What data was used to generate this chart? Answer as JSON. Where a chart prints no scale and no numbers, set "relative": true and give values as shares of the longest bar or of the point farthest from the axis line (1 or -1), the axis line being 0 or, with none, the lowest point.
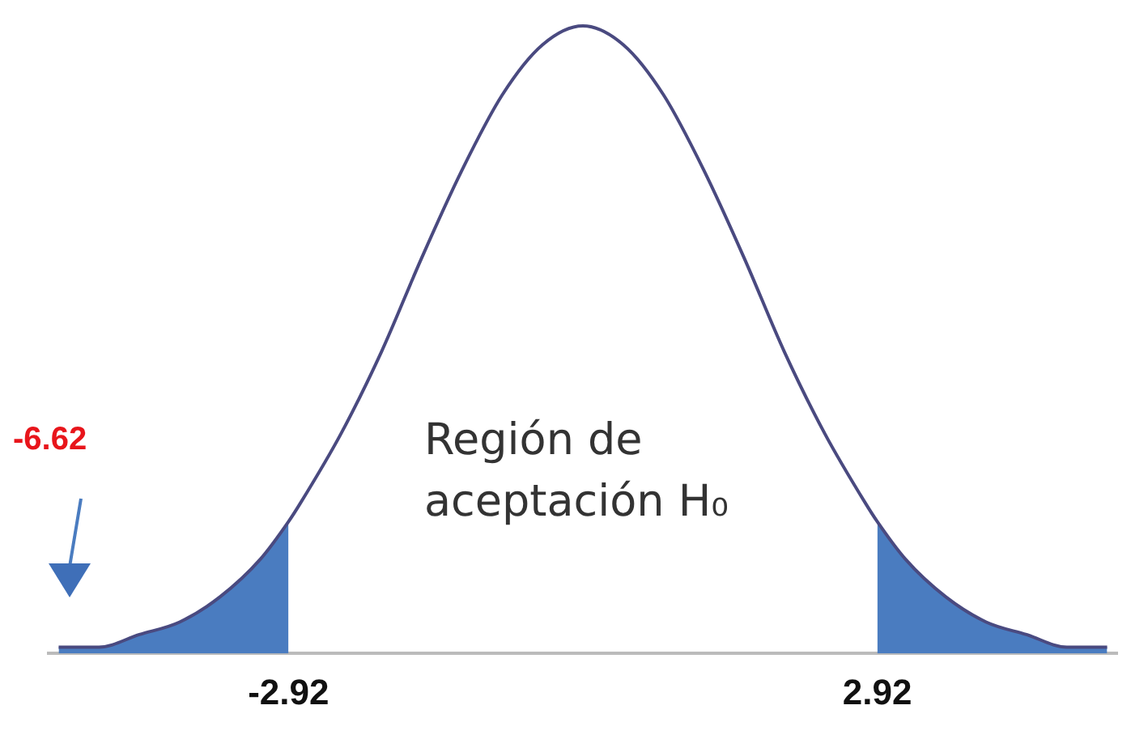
{
  "chart_data": {
    "type": "line",
    "relative": true,
    "xlim": [
      -5.3,
      5.3
    ],
    "xticks": [
      {
        "value": -2.92,
        "label": "-2.92"
      },
      {
        "value": 2.92,
        "label": "2.92"
      }
    ],
    "series": [
      {
        "color": "#4a4a80",
        "x": [
          -5.2,
          -4.8,
          -4.4,
          -4.0,
          -3.6,
          -3.2,
          -2.92,
          -2.8,
          -2.4,
          -2.0,
          -1.6,
          -1.2,
          -0.8,
          -0.4,
          0,
          0.4,
          0.8,
          1.2,
          1.6,
          2.0,
          2.4,
          2.8,
          2.92,
          3.2,
          3.6,
          4.0,
          4.4,
          4.8,
          5.2
        ],
        "values": [
          0.01,
          0.01,
          0.03,
          0.05,
          0.09,
          0.15,
          0.21,
          0.24,
          0.35,
          0.48,
          0.63,
          0.77,
          0.89,
          0.97,
          1,
          0.97,
          0.89,
          0.77,
          0.63,
          0.48,
          0.35,
          0.24,
          0.21,
          0.15,
          0.09,
          0.05,
          0.03,
          0.01,
          0.01
        ]
      },
      {
        "type": "area",
        "color": "#4a7cc0",
        "x": [
          -5.2,
          -4.8,
          -4.4,
          -4.0,
          -3.6,
          -3.2,
          -2.92
        ],
        "values": [
          0.01,
          0.01,
          0.03,
          0.05,
          0.09,
          0.15,
          0.21
        ]
      },
      {
        "type": "area",
        "color": "#4a7cc0",
        "x": [
          2.92,
          3.2,
          3.6,
          4.0,
          4.4,
          4.8,
          5.2
        ],
        "values": [
          0.21,
          0.15,
          0.09,
          0.05,
          0.03,
          0.01,
          0.01
        ]
      }
    ],
    "annotations": [
      "Región de\naceptación H₀",
      "-6.62"
    ],
    "grid": false,
    "legend": false
  }
}
